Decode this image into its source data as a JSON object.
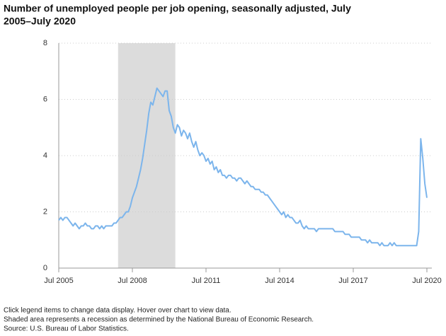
{
  "chart_data": {
    "type": "line",
    "title_lines": [
      "Number of unemployed people per job opening, seasonally adjusted, July",
      "2005–July 2020"
    ],
    "notes": [
      "Click legend items to change data display. Hover over chart to view data.",
      "Shaded area represents a recession as determined by the National Bureau of Economic Research.",
      "Source: U.S. Bureau of Labor Statistics."
    ],
    "categories": [
      "Jul 2005",
      null,
      null,
      null,
      null,
      null,
      null,
      null,
      null,
      null,
      null,
      null,
      null,
      null,
      null,
      null,
      null,
      null,
      null,
      null,
      null,
      null,
      null,
      null,
      null,
      null,
      null,
      null,
      null,
      null,
      null,
      null,
      null,
      null,
      null,
      null,
      "Jul 2008",
      null,
      null,
      null,
      null,
      null,
      null,
      null,
      null,
      null,
      null,
      null,
      null,
      null,
      null,
      null,
      null,
      null,
      null,
      null,
      null,
      null,
      null,
      null,
      null,
      null,
      null,
      null,
      null,
      null,
      null,
      null,
      null,
      null,
      null,
      null,
      "Jul 2011",
      null,
      null,
      null,
      null,
      null,
      null,
      null,
      null,
      null,
      null,
      null,
      null,
      null,
      null,
      null,
      null,
      null,
      null,
      null,
      null,
      null,
      null,
      null,
      null,
      null,
      null,
      null,
      null,
      null,
      null,
      null,
      null,
      null,
      null,
      null,
      "Jul 2014",
      null,
      null,
      null,
      null,
      null,
      null,
      null,
      null,
      null,
      null,
      null,
      null,
      null,
      null,
      null,
      null,
      null,
      null,
      null,
      null,
      null,
      null,
      null,
      null,
      null,
      null,
      null,
      null,
      null,
      null,
      null,
      null,
      null,
      null,
      null,
      "Jul 2017",
      null,
      null,
      null,
      null,
      null,
      null,
      null,
      null,
      null,
      null,
      null,
      null,
      null,
      null,
      null,
      null,
      null,
      null,
      null,
      null,
      null,
      null,
      null,
      null,
      null,
      null,
      null,
      null,
      null,
      null,
      null,
      null,
      null,
      null,
      null,
      "Jul 2020"
    ],
    "values": [
      1.7,
      1.8,
      1.7,
      1.8,
      1.8,
      1.7,
      1.6,
      1.5,
      1.6,
      1.5,
      1.4,
      1.5,
      1.5,
      1.6,
      1.5,
      1.5,
      1.4,
      1.4,
      1.5,
      1.5,
      1.4,
      1.5,
      1.4,
      1.5,
      1.5,
      1.5,
      1.5,
      1.6,
      1.6,
      1.7,
      1.8,
      1.8,
      1.9,
      2.0,
      2.0,
      2.2,
      2.5,
      2.7,
      2.9,
      3.2,
      3.5,
      3.9,
      4.4,
      4.9,
      5.5,
      5.9,
      5.8,
      6.1,
      6.4,
      6.3,
      6.2,
      6.1,
      6.3,
      6.3,
      5.6,
      5.4,
      5.0,
      4.8,
      5.1,
      5.0,
      4.7,
      4.9,
      4.8,
      4.6,
      4.8,
      4.5,
      4.3,
      4.5,
      4.2,
      4.0,
      4.1,
      4.0,
      3.8,
      3.9,
      3.7,
      3.8,
      3.5,
      3.6,
      3.4,
      3.5,
      3.3,
      3.3,
      3.2,
      3.3,
      3.3,
      3.2,
      3.2,
      3.1,
      3.2,
      3.2,
      3.1,
      3.0,
      3.1,
      3.0,
      2.9,
      2.9,
      2.8,
      2.8,
      2.8,
      2.7,
      2.7,
      2.6,
      2.6,
      2.5,
      2.4,
      2.3,
      2.2,
      2.1,
      2.0,
      1.9,
      2.0,
      1.8,
      1.9,
      1.8,
      1.8,
      1.7,
      1.6,
      1.6,
      1.7,
      1.5,
      1.4,
      1.5,
      1.4,
      1.4,
      1.4,
      1.4,
      1.3,
      1.4,
      1.4,
      1.4,
      1.4,
      1.4,
      1.4,
      1.4,
      1.4,
      1.3,
      1.3,
      1.3,
      1.3,
      1.3,
      1.2,
      1.2,
      1.2,
      1.1,
      1.1,
      1.1,
      1.1,
      1.1,
      1.0,
      1.0,
      1.0,
      0.9,
      1.0,
      0.9,
      0.9,
      0.9,
      0.9,
      0.8,
      0.9,
      0.8,
      0.8,
      0.8,
      0.9,
      0.8,
      0.9,
      0.8,
      0.8,
      0.8,
      0.8,
      0.8,
      0.8,
      0.8,
      0.8,
      0.8,
      0.8,
      0.8,
      1.3,
      4.6,
      3.9,
      3.0,
      2.5
    ],
    "color": "#7cb5ec",
    "recession": {
      "first_index": 29,
      "last_index": 57,
      "color": "#dcdcdc"
    },
    "ylim": [
      0,
      8
    ],
    "yticks": [
      0,
      2,
      4,
      6,
      8
    ],
    "grid": true
  }
}
